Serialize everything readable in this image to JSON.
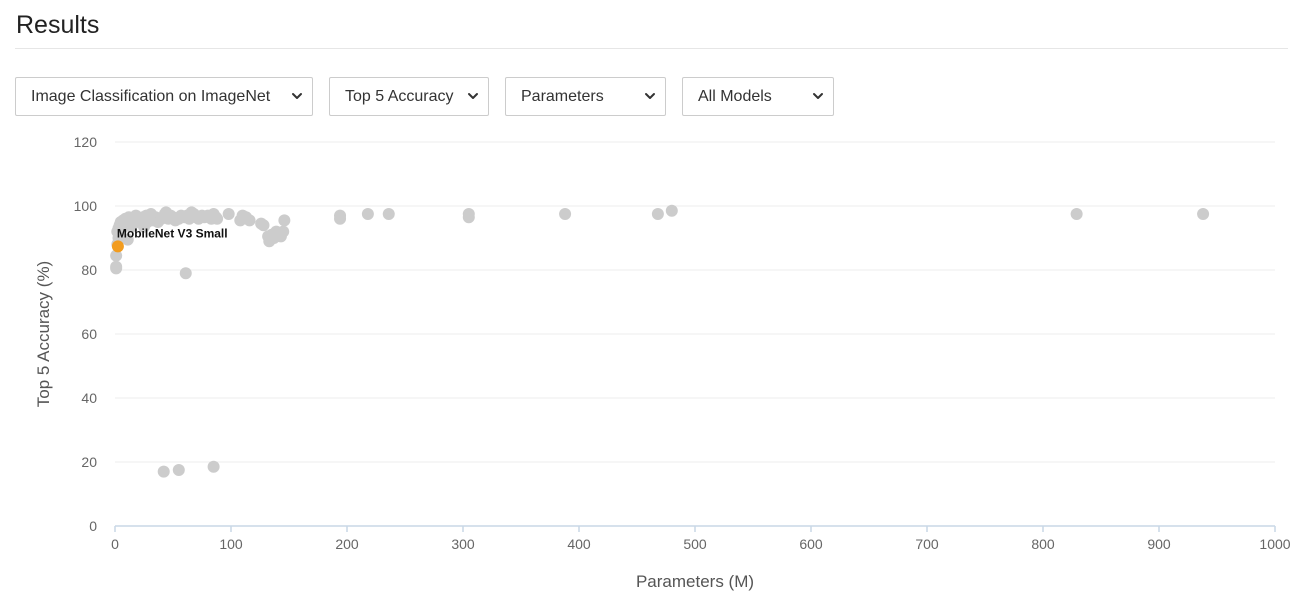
{
  "header": {
    "title": "Results"
  },
  "filters": {
    "task": "Image Classification on ImageNet",
    "metric": "Top 5 Accuracy",
    "x_axis": "Parameters",
    "model_filter": "All Models"
  },
  "colors": {
    "point": "#cccccc",
    "highlight": "#f29c1f",
    "grid": "#eeeeee",
    "axis": "#c9d7e6"
  },
  "icons": {
    "dropdown": "chevron-down-icon"
  },
  "chart_data": {
    "type": "scatter",
    "xlabel": "Parameters (M)",
    "ylabel": "Top 5 Accuracy (%)",
    "xlim": [
      0,
      1000
    ],
    "ylim": [
      0,
      120
    ],
    "xticks": [
      0,
      100,
      200,
      300,
      400,
      500,
      600,
      700,
      800,
      900,
      1000
    ],
    "yticks": [
      0,
      20,
      40,
      60,
      80,
      100,
      120
    ],
    "grid": true,
    "series": [
      {
        "points": [
          [
            1,
            84.5
          ],
          [
            1,
            81
          ],
          [
            1,
            80.5
          ],
          [
            2,
            88
          ],
          [
            2,
            92
          ],
          [
            3,
            90
          ],
          [
            3,
            93
          ],
          [
            4,
            91
          ],
          [
            4,
            94
          ],
          [
            5,
            92.5
          ],
          [
            5,
            95
          ],
          [
            6,
            93
          ],
          [
            7,
            95.5
          ],
          [
            8,
            94
          ],
          [
            9,
            96
          ],
          [
            10,
            95
          ],
          [
            11,
            89.5
          ],
          [
            12,
            96.5
          ],
          [
            13,
            95
          ],
          [
            14,
            93.5
          ],
          [
            15,
            96
          ],
          [
            16,
            94.5
          ],
          [
            18,
            97
          ],
          [
            19,
            95.5
          ],
          [
            20,
            96
          ],
          [
            22,
            95
          ],
          [
            24,
            96.5
          ],
          [
            25,
            93.5
          ],
          [
            27,
            97
          ],
          [
            28,
            95
          ],
          [
            30,
            96
          ],
          [
            31,
            97.5
          ],
          [
            33,
            95.5
          ],
          [
            35,
            96.5
          ],
          [
            37,
            95
          ],
          [
            40,
            96
          ],
          [
            43,
            97.5
          ],
          [
            44,
            98
          ],
          [
            46,
            96
          ],
          [
            48,
            97
          ],
          [
            50,
            96.5
          ],
          [
            52,
            95.5
          ],
          [
            55,
            96
          ],
          [
            57,
            97
          ],
          [
            60,
            96.5
          ],
          [
            62,
            97
          ],
          [
            64,
            96
          ],
          [
            66,
            98
          ],
          [
            68,
            97.5
          ],
          [
            70,
            96.5
          ],
          [
            72,
            96
          ],
          [
            75,
            97
          ],
          [
            77,
            96.5
          ],
          [
            80,
            97
          ],
          [
            83,
            96
          ],
          [
            85,
            97.5
          ],
          [
            87,
            96.5
          ],
          [
            88,
            96
          ],
          [
            98,
            97.5
          ],
          [
            108,
            95.5
          ],
          [
            110,
            97
          ],
          [
            113,
            96.5
          ],
          [
            116,
            95.5
          ],
          [
            126,
            94.5
          ],
          [
            128,
            94
          ],
          [
            132,
            90.5
          ],
          [
            133,
            89
          ],
          [
            135,
            91
          ],
          [
            137,
            90
          ],
          [
            139,
            92
          ],
          [
            141,
            91
          ],
          [
            143,
            90.5
          ],
          [
            145,
            92
          ],
          [
            146,
            95.5
          ],
          [
            194,
            97
          ],
          [
            194,
            96
          ],
          [
            218,
            97.5
          ],
          [
            236,
            97.5
          ],
          [
            305,
            97.5
          ],
          [
            305,
            96.5
          ],
          [
            388,
            97.5
          ],
          [
            468,
            97.5
          ],
          [
            480,
            98.5
          ],
          [
            829,
            97.5
          ],
          [
            938,
            97.5
          ],
          [
            61,
            79
          ],
          [
            42,
            17
          ],
          [
            55,
            17.5
          ],
          [
            85,
            18.5
          ]
        ]
      }
    ],
    "highlight": {
      "label": "MobileNet V3 Small",
      "x": 2.5,
      "y": 87.4
    }
  }
}
